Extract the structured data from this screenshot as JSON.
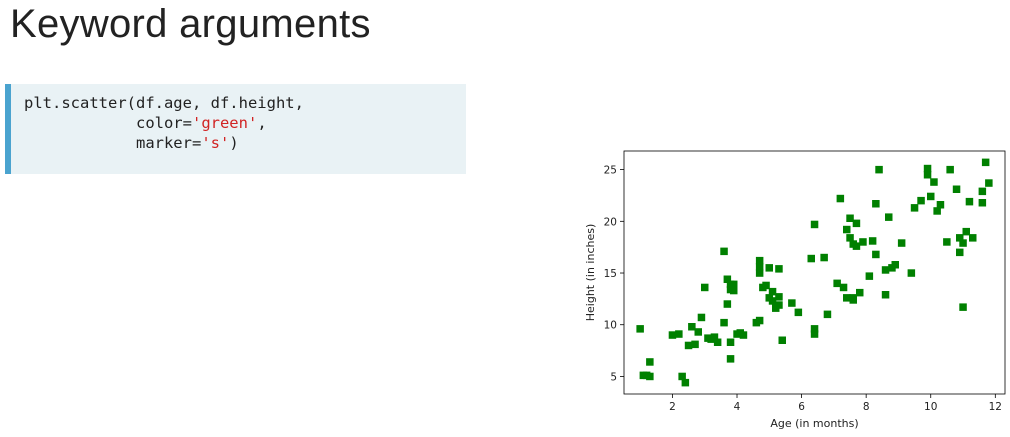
{
  "title": "Keyword arguments",
  "code": {
    "line1": "plt.scatter(df.age, df.height,",
    "line2_indent": "            ",
    "line2_prefix": "color=",
    "line2_str": "'green'",
    "line2_suffix": ",",
    "line3_prefix": "marker=",
    "line3_str": "'s'",
    "line3_suffix": ")"
  },
  "colors": {
    "marker": "#008000",
    "code_bg": "#e9f2f5",
    "code_bar": "#4aa3cf",
    "string": "#d12424"
  },
  "chart_data": {
    "type": "scatter",
    "title": "",
    "xlabel": "Age (in months)",
    "ylabel": "Height (in inches)",
    "xlim": [
      0.5,
      12.3
    ],
    "ylim": [
      3.3,
      26.8
    ],
    "xticks": [
      2,
      4,
      6,
      8,
      10,
      12
    ],
    "yticks": [
      5,
      10,
      15,
      20,
      25
    ],
    "marker": "square",
    "color": "#008000",
    "grid": false,
    "series": [
      {
        "x": [
          1.0,
          1.1,
          1.2,
          1.3,
          1.3,
          2.0,
          2.2,
          2.3,
          2.4,
          2.5,
          2.6,
          2.7,
          2.8,
          2.9,
          3.0,
          3.1,
          3.2,
          3.3,
          3.4,
          3.6,
          3.6,
          3.7,
          3.7,
          3.8,
          3.8,
          3.8,
          3.8,
          3.9,
          3.9,
          4.0,
          4.1,
          4.2,
          4.6,
          4.7,
          4.7,
          4.7,
          4.7,
          4.8,
          4.9,
          5.0,
          5.0,
          5.1,
          5.1,
          5.2,
          5.2,
          5.3,
          5.3,
          5.3,
          5.4,
          5.7,
          5.9,
          6.3,
          6.4,
          6.4,
          6.4,
          6.7,
          6.8,
          7.1,
          7.2,
          7.3,
          7.4,
          7.4,
          7.5,
          7.5,
          7.6,
          7.6,
          7.6,
          7.7,
          7.7,
          7.8,
          7.9,
          8.1,
          8.2,
          8.3,
          8.3,
          8.4,
          8.6,
          8.6,
          8.7,
          8.8,
          8.9,
          9.1,
          9.4,
          9.5,
          9.7,
          9.9,
          9.9,
          10.0,
          10.1,
          10.2,
          10.3,
          10.5,
          10.6,
          10.8,
          10.9,
          10.9,
          11.0,
          11.0,
          11.1,
          11.2,
          11.3,
          11.6,
          11.6,
          11.7,
          11.8
        ],
        "y": [
          9.6,
          5.1,
          5.1,
          5.0,
          6.4,
          9.0,
          9.1,
          5.0,
          4.4,
          8.0,
          9.8,
          8.1,
          9.3,
          10.7,
          13.6,
          8.7,
          8.6,
          8.8,
          8.3,
          10.2,
          17.1,
          12.0,
          14.4,
          13.4,
          13.9,
          6.7,
          8.3,
          13.9,
          13.3,
          9.1,
          9.2,
          9.0,
          10.2,
          16.2,
          15.0,
          15.6,
          10.4,
          13.6,
          13.8,
          15.5,
          12.6,
          13.2,
          12.3,
          11.6,
          11.8,
          15.4,
          11.9,
          12.7,
          8.5,
          12.1,
          11.2,
          16.4,
          19.7,
          9.6,
          9.1,
          16.5,
          11.0,
          14.0,
          22.2,
          13.6,
          19.2,
          12.6,
          20.3,
          18.4,
          17.8,
          12.4,
          12.6,
          17.6,
          19.8,
          13.1,
          18.0,
          14.7,
          18.1,
          16.8,
          21.7,
          25.0,
          12.9,
          15.3,
          20.4,
          15.5,
          15.8,
          17.9,
          15.0,
          21.3,
          22.0,
          25.1,
          24.5,
          22.4,
          23.8,
          21.0,
          21.6,
          18.0,
          25.0,
          23.1,
          17.0,
          18.4,
          17.9,
          11.7,
          19.0,
          21.9,
          18.4,
          21.8,
          22.9,
          25.7,
          23.7
        ]
      }
    ]
  }
}
